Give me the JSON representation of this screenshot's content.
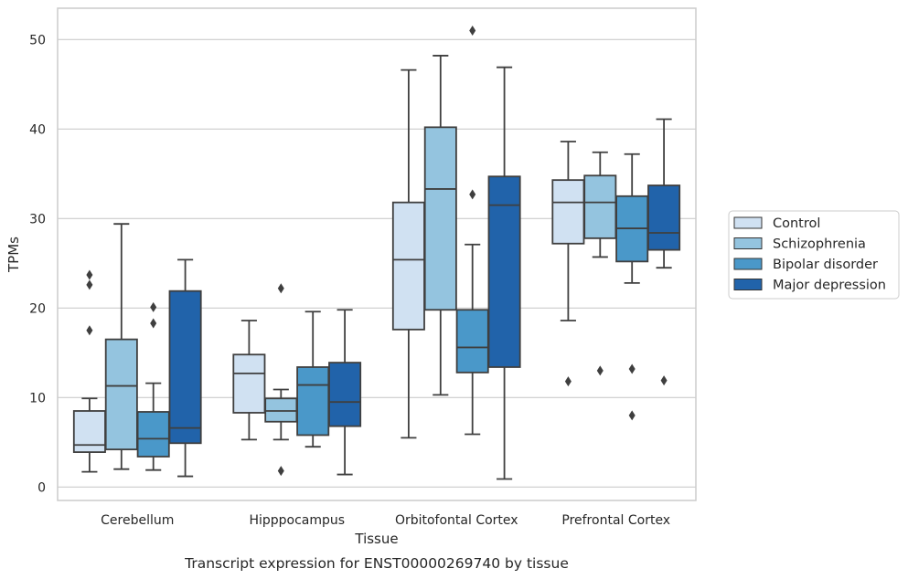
{
  "chart_data": {
    "type": "boxplot",
    "caption": "Transcript expression for ENST00000269740 by tissue",
    "xlabel": "Tissue",
    "ylabel": "TPMs",
    "ylim": [
      -1.5,
      53.5
    ],
    "yticks": [
      0,
      10,
      20,
      30,
      40,
      50
    ],
    "grid": "horizontal",
    "legend_position": "right",
    "categories": [
      "Cerebellum",
      "Hipppocampus",
      "Orbitofontal Cortex",
      "Prefrontal Cortex"
    ],
    "series": [
      {
        "name": "Control",
        "color": "#d0e1f2",
        "boxes": [
          {
            "whisker_low": 1.7,
            "q1": 3.9,
            "median": 4.7,
            "q3": 8.5,
            "whisker_high": 9.9,
            "outliers": [
              17.5,
              22.6,
              23.7
            ]
          },
          {
            "whisker_low": 5.3,
            "q1": 8.3,
            "median": 12.7,
            "q3": 14.8,
            "whisker_high": 18.6,
            "outliers": []
          },
          {
            "whisker_low": 5.5,
            "q1": 17.6,
            "median": 25.4,
            "q3": 31.8,
            "whisker_high": 46.6,
            "outliers": []
          },
          {
            "whisker_low": 18.6,
            "q1": 27.2,
            "median": 31.8,
            "q3": 34.3,
            "whisker_high": 38.6,
            "outliers": [
              11.8
            ]
          }
        ]
      },
      {
        "name": "Schizophrenia",
        "color": "#94c4df",
        "boxes": [
          {
            "whisker_low": 2.0,
            "q1": 4.2,
            "median": 11.3,
            "q3": 16.5,
            "whisker_high": 29.4,
            "outliers": []
          },
          {
            "whisker_low": 5.3,
            "q1": 7.3,
            "median": 8.5,
            "q3": 9.9,
            "whisker_high": 10.9,
            "outliers": [
              1.8,
              22.2
            ]
          },
          {
            "whisker_low": 10.3,
            "q1": 19.8,
            "median": 33.3,
            "q3": 40.2,
            "whisker_high": 48.2,
            "outliers": []
          },
          {
            "whisker_low": 25.7,
            "q1": 27.8,
            "median": 31.8,
            "q3": 34.8,
            "whisker_high": 37.4,
            "outliers": [
              13.0
            ]
          }
        ]
      },
      {
        "name": "Bipolar disorder",
        "color": "#4a98c9",
        "boxes": [
          {
            "whisker_low": 1.9,
            "q1": 3.4,
            "median": 5.4,
            "q3": 8.4,
            "whisker_high": 11.6,
            "outliers": [
              18.3,
              20.1
            ]
          },
          {
            "whisker_low": 4.5,
            "q1": 5.8,
            "median": 11.4,
            "q3": 13.4,
            "whisker_high": 19.6,
            "outliers": []
          },
          {
            "whisker_low": 5.9,
            "q1": 12.8,
            "median": 15.6,
            "q3": 19.8,
            "whisker_high": 27.1,
            "outliers": [
              32.7,
              51.0
            ]
          },
          {
            "whisker_low": 22.8,
            "q1": 25.2,
            "median": 28.9,
            "q3": 32.5,
            "whisker_high": 37.2,
            "outliers": [
              8.0,
              13.2
            ]
          }
        ]
      },
      {
        "name": "Major depression",
        "color": "#2163aa",
        "boxes": [
          {
            "whisker_low": 1.2,
            "q1": 4.9,
            "median": 6.6,
            "q3": 21.9,
            "whisker_high": 25.4,
            "outliers": []
          },
          {
            "whisker_low": 1.4,
            "q1": 6.8,
            "median": 9.5,
            "q3": 13.9,
            "whisker_high": 19.8,
            "outliers": []
          },
          {
            "whisker_low": 0.9,
            "q1": 13.4,
            "median": 31.5,
            "q3": 34.7,
            "whisker_high": 46.9,
            "outliers": []
          },
          {
            "whisker_low": 24.5,
            "q1": 26.5,
            "median": 28.4,
            "q3": 33.7,
            "whisker_high": 41.1,
            "outliers": [
              11.9
            ]
          }
        ]
      }
    ]
  }
}
